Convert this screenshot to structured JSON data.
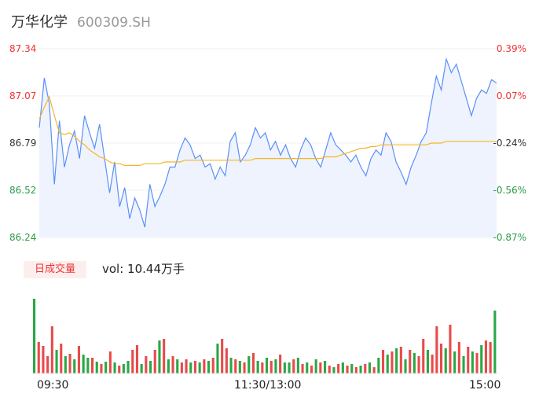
{
  "header": {
    "name": "万华化学",
    "code": "600309.SH"
  },
  "price_axis": {
    "left_ticks": [
      "87.34",
      "87.07",
      "86.79",
      "86.52",
      "86.24"
    ],
    "right_ticks": [
      "0.39%",
      "0.07%",
      "-0.24%",
      "-0.56%",
      "-0.87%"
    ]
  },
  "volume": {
    "badge": "日成交量",
    "label": "vol: 10.44万手"
  },
  "time_axis": {
    "ticks": [
      "09:30",
      "11:30/13:00",
      "15:00"
    ]
  },
  "colors": {
    "price_line": "#5b8ff9",
    "avg_line": "#f5b52a",
    "up": "#e84a4a",
    "down": "#2aa745",
    "area": "#eef3fd"
  },
  "chart_data": [
    {
      "type": "line",
      "ylim": [
        86.24,
        87.34
      ],
      "series": [
        {
          "values": [
            86.88,
            87.17,
            87.02,
            86.55,
            86.92,
            86.65,
            86.78,
            86.86,
            86.7,
            86.95,
            86.85,
            86.76,
            86.9,
            86.7,
            86.5,
            86.68,
            86.42,
            86.53,
            86.35,
            86.47,
            86.4,
            86.3,
            86.55,
            86.42,
            86.48,
            86.55,
            86.65,
            86.65,
            86.75,
            86.82,
            86.78,
            86.7,
            86.72,
            86.65,
            86.67,
            86.58,
            86.65,
            86.6,
            86.8,
            86.85,
            86.68,
            86.72,
            86.78,
            86.88,
            86.82,
            86.85,
            86.75,
            86.8,
            86.72,
            86.78,
            86.7,
            86.65,
            86.75,
            86.82,
            86.78,
            86.7,
            86.65,
            86.75,
            86.85,
            86.78,
            86.75,
            86.72,
            86.68,
            86.72,
            86.65,
            86.6,
            86.7,
            86.75,
            86.72,
            86.85,
            86.8,
            86.68,
            86.62,
            86.55,
            86.65,
            86.72,
            86.8,
            86.85,
            87.02,
            87.18,
            87.1,
            87.28,
            87.2,
            87.25,
            87.15,
            87.05,
            86.95,
            87.05,
            87.1,
            87.08,
            87.16,
            87.14
          ]
        },
        {
          "values": [
            86.93,
            87.0,
            87.06,
            86.95,
            86.85,
            86.84,
            86.85,
            86.83,
            86.8,
            86.78,
            86.75,
            86.73,
            86.71,
            86.7,
            86.68,
            86.67,
            86.67,
            86.66,
            86.66,
            86.66,
            86.66,
            86.67,
            86.67,
            86.67,
            86.67,
            86.68,
            86.68,
            86.68,
            86.68,
            86.69,
            86.69,
            86.69,
            86.69,
            86.69,
            86.69,
            86.69,
            86.69,
            86.69,
            86.69,
            86.69,
            86.69,
            86.69,
            86.69,
            86.7,
            86.7,
            86.7,
            86.7,
            86.7,
            86.7,
            86.7,
            86.7,
            86.7,
            86.7,
            86.7,
            86.7,
            86.7,
            86.7,
            86.71,
            86.71,
            86.71,
            86.72,
            86.73,
            86.74,
            86.75,
            86.76,
            86.76,
            86.77,
            86.77,
            86.78,
            86.78,
            86.78,
            86.78,
            86.78,
            86.78,
            86.78,
            86.78,
            86.78,
            86.78,
            86.79,
            86.79,
            86.79,
            86.8,
            86.8,
            86.8,
            86.8,
            86.8,
            86.8,
            86.8,
            86.8,
            86.8,
            86.8,
            86.8
          ]
        }
      ]
    },
    {
      "type": "bar",
      "values": [
        95,
        40,
        35,
        22,
        60,
        30,
        38,
        22,
        25,
        18,
        35,
        24,
        20,
        20,
        15,
        12,
        15,
        28,
        14,
        10,
        12,
        16,
        30,
        36,
        12,
        22,
        16,
        30,
        42,
        44,
        18,
        22,
        18,
        14,
        18,
        14,
        16,
        14,
        18,
        16,
        20,
        38,
        44,
        32,
        20,
        18,
        16,
        14,
        22,
        26,
        16,
        14,
        20,
        16,
        18,
        24,
        14,
        14,
        18,
        20,
        12,
        14,
        10,
        18,
        14,
        16,
        10,
        8,
        12,
        14,
        10,
        12,
        8,
        10,
        12,
        14,
        8,
        20,
        30,
        24,
        28,
        32,
        34,
        18,
        30,
        26,
        22,
        44,
        30,
        24,
        60,
        38,
        32,
        62,
        28,
        40,
        22,
        34,
        28,
        26,
        36,
        42,
        40,
        80
      ],
      "up": [
        false,
        true,
        true,
        true,
        true,
        false,
        true,
        false,
        true,
        false,
        true,
        false,
        false,
        true,
        false,
        true,
        false,
        true,
        false,
        true,
        false,
        false,
        true,
        true,
        false,
        true,
        false,
        true,
        false,
        true,
        false,
        true,
        false,
        true,
        true,
        false,
        true,
        false,
        true,
        false,
        true,
        false,
        true,
        true,
        false,
        true,
        false,
        true,
        false,
        true,
        false,
        true,
        false,
        true,
        false,
        true,
        false,
        false,
        true,
        false,
        true,
        false,
        true,
        false,
        true,
        false,
        true,
        false,
        true,
        false,
        true,
        false,
        true,
        false,
        true,
        false,
        true,
        false,
        true,
        false,
        true,
        false,
        true,
        false,
        true,
        false,
        true,
        true,
        false,
        true,
        true,
        true,
        false,
        true,
        false,
        true,
        false,
        true,
        false,
        true,
        false,
        true,
        true,
        false
      ]
    }
  ]
}
